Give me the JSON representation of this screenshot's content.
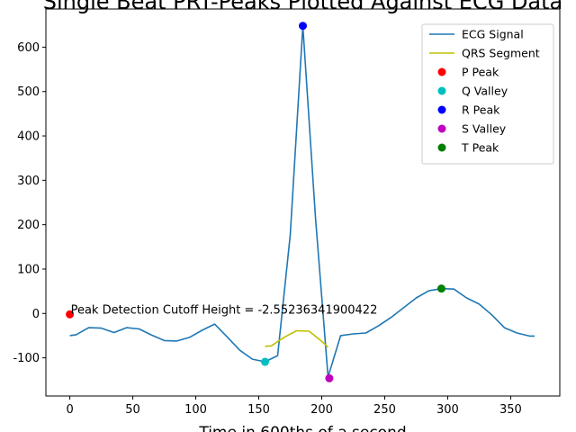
{
  "chart_data": {
    "type": "line",
    "title": "Single Beat PRT-Peaks Plotted Against ECG Data",
    "xlabel": "Time in 600ths of a second",
    "ylabel": "",
    "xlim": [
      -19,
      389
    ],
    "ylim": [
      -186,
      686
    ],
    "xticks": [
      0,
      50,
      100,
      150,
      200,
      250,
      300,
      350
    ],
    "yticks": [
      -100,
      0,
      100,
      200,
      300,
      400,
      500,
      600
    ],
    "grid": false,
    "legend_position": "top-right",
    "annotation": "Peak Detection Cutoff Height = -2.55236341900422",
    "annotation_anchor": [
      0,
      -2.55
    ],
    "series": [
      {
        "name": "ECG Signal",
        "kind": "line",
        "color": "#1f77b4",
        "x": [
          0,
          5,
          15,
          25,
          35,
          45,
          55,
          65,
          75,
          85,
          95,
          105,
          115,
          125,
          135,
          145,
          155,
          165,
          175,
          185,
          195,
          205,
          215,
          225,
          235,
          245,
          255,
          265,
          275,
          285,
          295,
          305,
          315,
          325,
          335,
          345,
          355,
          365,
          369
        ],
        "y": [
          -50,
          -48,
          -32,
          -33,
          -43,
          -32,
          -35,
          -49,
          -61,
          -62,
          -54,
          -38,
          -24,
          -53,
          -83,
          -103,
          -109,
          -95,
          177,
          648,
          217,
          -143,
          -50,
          -46,
          -44,
          -28,
          -9,
          13,
          35,
          51,
          56,
          55,
          35,
          21,
          -3,
          -32,
          -44,
          -51,
          -51
        ]
      },
      {
        "name": "QRS Segment",
        "kind": "line",
        "color": "#bfbf00",
        "x": [
          155,
          160,
          170,
          180,
          190,
          200,
          205
        ],
        "y": [
          -74,
          -73,
          -54,
          -39,
          -40,
          -63,
          -76
        ]
      },
      {
        "name": "P Peak",
        "kind": "point",
        "color": "#ff0000",
        "x": [
          0
        ],
        "y": [
          -2
        ]
      },
      {
        "name": "Q Valley",
        "kind": "point",
        "color": "#00bfbf",
        "x": [
          155
        ],
        "y": [
          -109
        ]
      },
      {
        "name": "R Peak",
        "kind": "point",
        "color": "#0000ff",
        "x": [
          185
        ],
        "y": [
          648
        ]
      },
      {
        "name": "S Valley",
        "kind": "point",
        "color": "#bf00bf",
        "x": [
          206
        ],
        "y": [
          -146
        ]
      },
      {
        "name": "T Peak",
        "kind": "point",
        "color": "#008000",
        "x": [
          295
        ],
        "y": [
          56
        ]
      }
    ]
  }
}
